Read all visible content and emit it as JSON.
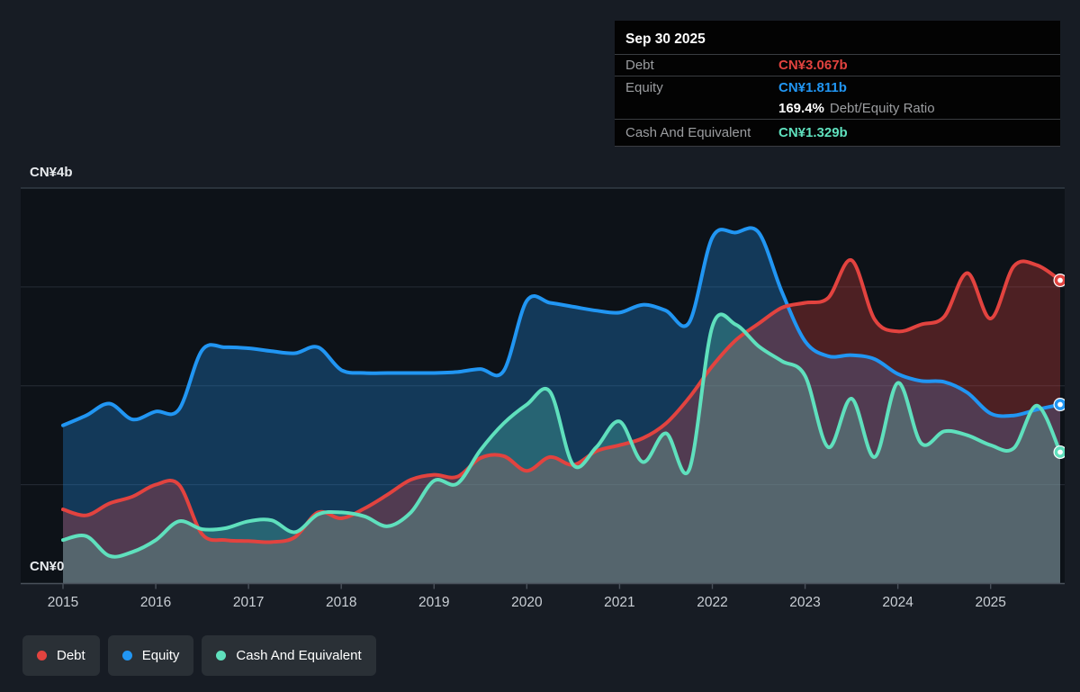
{
  "tooltip": {
    "date": "Sep 30 2025",
    "rows": [
      {
        "label": "Debt",
        "value": "CN¥3.067b",
        "color": "#e2433f"
      },
      {
        "label": "Equity",
        "value": "CN¥1.811b",
        "color": "#2196f3"
      },
      {
        "label": "Cash And Equivalent",
        "value": "CN¥1.329b",
        "color": "#5fe0bd"
      }
    ],
    "ratio_value": "169.4%",
    "ratio_label": "Debt/Equity Ratio"
  },
  "axis": {
    "y_top_label": "CN¥4b",
    "y_bottom_label": "CN¥0",
    "years": [
      "2015",
      "2016",
      "2017",
      "2018",
      "2019",
      "2020",
      "2021",
      "2022",
      "2023",
      "2024",
      "2025"
    ]
  },
  "legend": {
    "items": [
      {
        "label": "Debt",
        "color": "#e2433f"
      },
      {
        "label": "Equity",
        "color": "#2196f3"
      },
      {
        "label": "Cash And Equivalent",
        "color": "#5fe0bd"
      }
    ]
  },
  "colors": {
    "background": "#171c24",
    "plot_background": "#0d1218",
    "gridline": "#262d36",
    "gridline_top": "#3a424c",
    "axis_line": "#49505a",
    "debt": "#e2433f",
    "equity": "#2196f3",
    "cash": "#5fe0bd"
  },
  "chart_data": {
    "type": "area",
    "unit": "CN¥ billions",
    "ylim": [
      0,
      4
    ],
    "x_range": [
      2015,
      2025.75
    ],
    "grid_values": [
      0,
      1,
      2,
      3,
      4
    ],
    "legend_position": "bottom-left",
    "x": [
      2015.0,
      2015.25,
      2015.5,
      2015.75,
      2016.0,
      2016.25,
      2016.5,
      2016.75,
      2017.0,
      2017.25,
      2017.5,
      2017.75,
      2018.0,
      2018.25,
      2018.5,
      2018.75,
      2019.0,
      2019.25,
      2019.5,
      2019.75,
      2020.0,
      2020.25,
      2020.5,
      2020.75,
      2021.0,
      2021.25,
      2021.5,
      2021.75,
      2022.0,
      2022.25,
      2022.5,
      2022.75,
      2023.0,
      2023.25,
      2023.5,
      2023.75,
      2024.0,
      2024.25,
      2024.5,
      2024.75,
      2025.0,
      2025.25,
      2025.5,
      2025.75
    ],
    "series": [
      {
        "name": "Equity",
        "color": "#2196f3",
        "final_label": "CN¥1.811b",
        "values": [
          1.6,
          1.7,
          1.82,
          1.66,
          1.74,
          1.76,
          2.36,
          2.39,
          2.38,
          2.35,
          2.33,
          2.39,
          2.16,
          2.13,
          2.13,
          2.13,
          2.13,
          2.14,
          2.17,
          2.15,
          2.86,
          2.84,
          2.8,
          2.76,
          2.74,
          2.82,
          2.76,
          2.64,
          3.5,
          3.55,
          3.55,
          2.95,
          2.45,
          2.3,
          2.31,
          2.27,
          2.12,
          2.05,
          2.04,
          1.93,
          1.72,
          1.7,
          1.76,
          1.811
        ]
      },
      {
        "name": "Debt",
        "color": "#e2433f",
        "final_label": "CN¥3.067b",
        "values": [
          0.75,
          0.69,
          0.81,
          0.88,
          1.0,
          1.0,
          0.5,
          0.44,
          0.43,
          0.42,
          0.47,
          0.72,
          0.66,
          0.76,
          0.9,
          1.05,
          1.1,
          1.08,
          1.27,
          1.29,
          1.14,
          1.28,
          1.2,
          1.34,
          1.4,
          1.47,
          1.62,
          1.88,
          2.2,
          2.46,
          2.63,
          2.79,
          2.84,
          2.89,
          3.27,
          2.67,
          2.55,
          2.62,
          2.7,
          3.14,
          2.68,
          3.21,
          3.22,
          3.067
        ]
      },
      {
        "name": "Cash And Equivalent",
        "color": "#5fe0bd",
        "final_label": "CN¥1.329b",
        "values": [
          0.44,
          0.48,
          0.28,
          0.32,
          0.44,
          0.63,
          0.55,
          0.56,
          0.63,
          0.64,
          0.52,
          0.7,
          0.72,
          0.68,
          0.58,
          0.72,
          1.04,
          1.01,
          1.35,
          1.62,
          1.81,
          1.94,
          1.2,
          1.38,
          1.64,
          1.23,
          1.52,
          1.15,
          2.6,
          2.62,
          2.4,
          2.25,
          2.1,
          1.38,
          1.87,
          1.28,
          2.03,
          1.42,
          1.54,
          1.5,
          1.4,
          1.37,
          1.8,
          1.329
        ]
      }
    ]
  }
}
